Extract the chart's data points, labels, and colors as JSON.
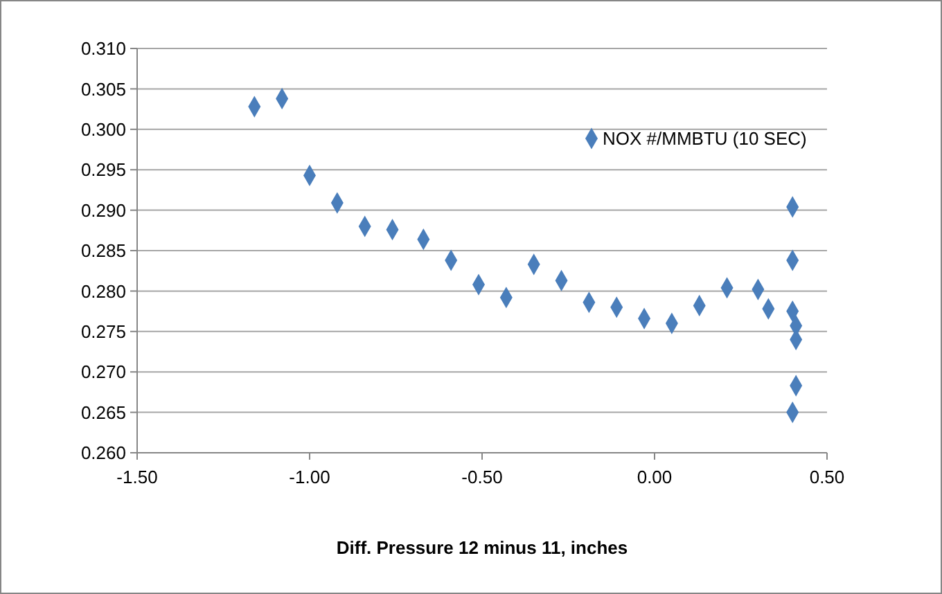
{
  "chart_data": {
    "type": "scatter",
    "xlabel": "Diff. Pressure 12 minus 11, inches",
    "x": [
      -1.16,
      -1.08,
      -1.0,
      -0.92,
      -0.84,
      -0.76,
      -0.67,
      -0.59,
      -0.51,
      -0.43,
      -0.35,
      -0.27,
      -0.19,
      -0.11,
      -0.03,
      0.05,
      0.13,
      0.21,
      0.3,
      0.33,
      0.4,
      0.4,
      0.4,
      0.41,
      0.41,
      0.41,
      0.4
    ],
    "series": [
      {
        "name": "NOX #/MMBTU (10 SEC)",
        "color": "#4a7ebb",
        "values": [
          0.3028,
          0.3038,
          0.2943,
          0.2909,
          0.288,
          0.2876,
          0.2864,
          0.2838,
          0.2808,
          0.2792,
          0.2833,
          0.2813,
          0.2786,
          0.278,
          0.2766,
          0.276,
          0.2782,
          0.2804,
          0.2802,
          0.2778,
          0.2904,
          0.2838,
          0.2775,
          0.2757,
          0.274,
          0.2683,
          0.265
        ]
      }
    ],
    "xlim": [
      -1.5,
      0.5
    ],
    "xticks": [
      {
        "value": -1.5,
        "label": "-1.50"
      },
      {
        "value": -1,
        "label": "-1.00"
      },
      {
        "value": -0.5,
        "label": "-0.50"
      },
      {
        "value": 0,
        "label": "0.00"
      },
      {
        "value": 0.5,
        "label": "0.50"
      }
    ],
    "ylim": [
      0.26,
      0.31
    ],
    "yticks": [
      {
        "value": 0.26,
        "label": "0.260"
      },
      {
        "value": 0.265,
        "label": "0.265"
      },
      {
        "value": 0.27,
        "label": "0.270"
      },
      {
        "value": 0.275,
        "label": "0.275"
      },
      {
        "value": 0.28,
        "label": "0.280"
      },
      {
        "value": 0.285,
        "label": "0.285"
      },
      {
        "value": 0.29,
        "label": "0.290"
      },
      {
        "value": 0.295,
        "label": "0.295"
      },
      {
        "value": 0.3,
        "label": "0.300"
      },
      {
        "value": 0.305,
        "label": "0.305"
      },
      {
        "value": 0.31,
        "label": "0.310"
      }
    ],
    "grid": "y",
    "marker": "diamond",
    "legend": "top right"
  }
}
